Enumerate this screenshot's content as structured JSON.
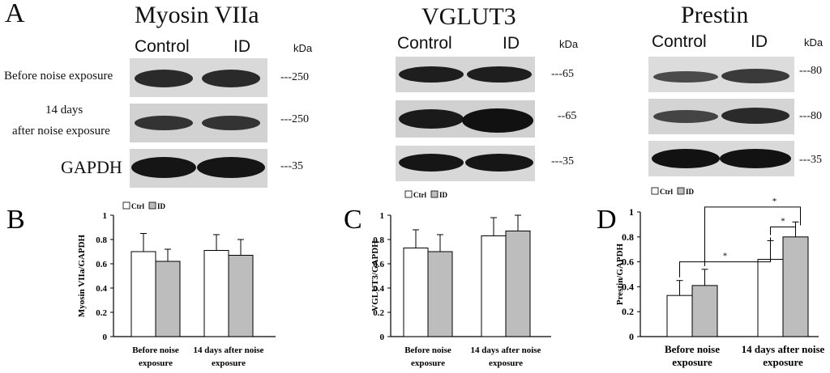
{
  "panelA": {
    "letter": "A",
    "kda_label": "kDa",
    "row_labels": {
      "before": "Before noise exposure",
      "after_line1": "14 days",
      "after_line2": "after noise exposure",
      "gapdh": "GAPDH"
    },
    "blots": [
      {
        "protein": "Myosin VIIa",
        "control": "Control",
        "id": "ID",
        "mw": [
          "---250",
          "---250",
          "---35"
        ]
      },
      {
        "protein": "VGLUT3",
        "control": "Control",
        "id": "ID",
        "mw": [
          "---65",
          "--65",
          "---35"
        ]
      },
      {
        "protein": "Prestin",
        "control": "Control",
        "id": "ID",
        "mw": [
          "---80",
          "---80",
          "---35"
        ]
      }
    ]
  },
  "chart_data": [
    {
      "panel": "B",
      "type": "bar",
      "ylabel": "Myosin VIIa/GAPDH",
      "ylim": [
        0,
        1
      ],
      "yticks": [
        "0",
        "0.2",
        "0.4",
        "0.6",
        "0.8",
        "1"
      ],
      "categories": [
        [
          "Before noise",
          "exposure"
        ],
        [
          "14 days after noise",
          "exposure"
        ]
      ],
      "series": [
        {
          "name": "Ctrl",
          "values": [
            0.7,
            0.71
          ],
          "errors": [
            0.15,
            0.13
          ]
        },
        {
          "name": "ID",
          "values": [
            0.62,
            0.67
          ],
          "errors": [
            0.1,
            0.13
          ]
        }
      ],
      "legend": "top-left",
      "annotations": []
    },
    {
      "panel": "C",
      "type": "bar",
      "ylabel": "VGLUT3/GAPDH",
      "ylim": [
        0,
        1
      ],
      "yticks": [
        "0",
        "0.2",
        "0.4",
        "0.6",
        "0.8",
        "1"
      ],
      "categories": [
        [
          "Before noise",
          "exposure"
        ],
        [
          "14 days after noise",
          "exposure"
        ]
      ],
      "series": [
        {
          "name": "Ctrl",
          "values": [
            0.73,
            0.83
          ],
          "errors": [
            0.15,
            0.15
          ]
        },
        {
          "name": "ID",
          "values": [
            0.7,
            0.87
          ],
          "errors": [
            0.14,
            0.13
          ]
        }
      ],
      "legend": "top-left",
      "annotations": []
    },
    {
      "panel": "D",
      "type": "bar",
      "ylabel": "Prestin/GAPDH",
      "ylim": [
        0,
        1
      ],
      "yticks": [
        "0",
        "0.2",
        "0.4",
        "0.6",
        "0.8",
        "1"
      ],
      "categories": [
        [
          "Before noise",
          "exposure"
        ],
        [
          "14 days after noise",
          "exposure"
        ]
      ],
      "series": [
        {
          "name": "Ctrl",
          "values": [
            0.33,
            0.62
          ],
          "errors": [
            0.12,
            0.15
          ]
        },
        {
          "name": "ID",
          "values": [
            0.41,
            0.8
          ],
          "errors": [
            0.13,
            0.12
          ]
        }
      ],
      "legend": "top-left",
      "annotations": [
        "*",
        "*",
        "*"
      ]
    }
  ]
}
